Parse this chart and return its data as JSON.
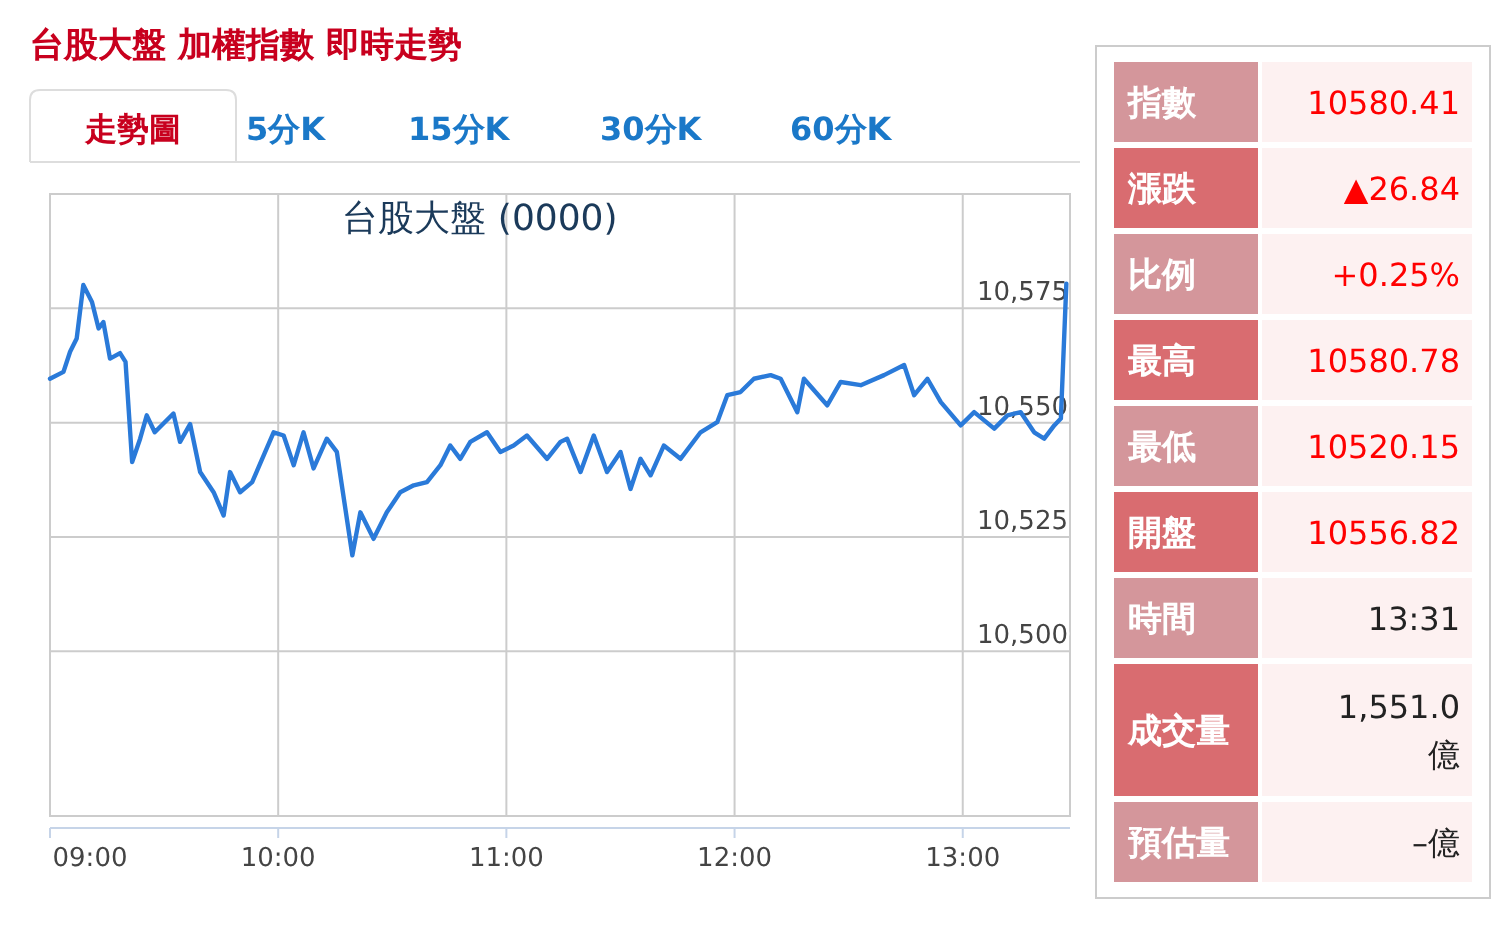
{
  "chart_data": [
    {
      "type": "line",
      "title": "台股大盤 加權指數 即時走勢",
      "subtitle": "台股大盤 (0000)",
      "annotations": [
        "走勢圖",
        "5分K",
        "15分K",
        "30分K",
        "60分K"
      ],
      "series": [
        {
          "color": "#2a7ad9",
          "x": [
            9.0,
            9.059,
            9.088,
            9.117,
            9.146,
            9.184,
            9.213,
            9.234,
            9.263,
            9.307,
            9.331,
            9.36,
            9.395,
            9.424,
            9.459,
            9.541,
            9.57,
            9.614,
            9.658,
            9.717,
            9.761,
            9.789,
            9.833,
            9.886,
            9.936,
            9.98,
            10.024,
            10.068,
            10.111,
            10.155,
            10.213,
            10.257,
            10.325,
            10.36,
            10.418,
            10.476,
            10.535,
            10.594,
            10.652,
            10.711,
            10.754,
            10.798,
            10.842,
            10.915,
            10.974,
            11.032,
            11.09,
            11.178,
            11.237,
            11.266,
            11.325,
            11.383,
            11.441,
            11.5,
            11.544,
            11.588,
            11.632,
            11.69,
            11.763,
            11.851,
            11.924,
            11.968,
            12.026,
            12.085,
            12.158,
            12.202,
            12.275,
            12.304,
            12.406,
            12.465,
            12.553,
            12.655,
            12.743,
            12.787,
            12.845,
            12.904,
            12.991,
            13.05,
            13.138,
            13.196,
            13.254,
            13.313,
            13.357,
            13.401,
            13.43,
            13.454
          ],
          "values": [
            10559.6,
            10561.1,
            10565.5,
            10568.4,
            10580.1,
            10576.4,
            10570.6,
            10572,
            10564,
            10565.2,
            10563.3,
            10541.4,
            10546.5,
            10551.6,
            10547.9,
            10552,
            10545.8,
            10549.7,
            10539.2,
            10534.8,
            10529.7,
            10539.2,
            10534.8,
            10537,
            10542.8,
            10547.9,
            10547.2,
            10540.7,
            10547.9,
            10540,
            10546.5,
            10543.6,
            10521,
            10530.4,
            10524.6,
            10530.4,
            10534.8,
            10536.3,
            10537,
            10540.7,
            10545,
            10542.1,
            10545.8,
            10547.9,
            10543.6,
            10545,
            10547.2,
            10542.1,
            10545.8,
            10546.5,
            10539.2,
            10547.2,
            10539.2,
            10543.6,
            10535.5,
            10542.1,
            10538.5,
            10545,
            10542.1,
            10547.9,
            10550.1,
            10556,
            10556.7,
            10559.6,
            10560.4,
            10559.6,
            10552.3,
            10559.6,
            10553.8,
            10558.9,
            10558.2,
            10560.4,
            10562.6,
            10556,
            10559.6,
            10554.5,
            10549.4,
            10552.3,
            10548.7,
            10551.6,
            10552.3,
            10547.9,
            10546.5,
            10549.4,
            10550.9,
            10580.4
          ]
        }
      ],
      "xlim": [
        9,
        13.47
      ],
      "xticks": [
        {
          "value": 9,
          "label": "09:00"
        },
        {
          "value": 10,
          "label": "10:00"
        },
        {
          "value": 11,
          "label": "11:00"
        },
        {
          "value": 12,
          "label": "12:00"
        },
        {
          "value": 13,
          "label": "13:00"
        }
      ],
      "ylim": [
        10464,
        10600
      ],
      "yticks": [
        {
          "value": 10500,
          "label": "10,500"
        },
        {
          "value": 10525,
          "label": "10,525"
        },
        {
          "value": 10550,
          "label": "10,550"
        },
        {
          "value": 10575,
          "label": "10,575"
        }
      ],
      "grid": true
    },
    {
      "type": "other",
      "categories": [
        "指數",
        "漲跌",
        "比例",
        "最高",
        "最低",
        "開盤",
        "時間",
        "成交量",
        "預估量"
      ],
      "value_labels": [
        "10580.41",
        "▲26.84",
        "+0.25%",
        "10580.78",
        "10520.15",
        "10556.82",
        "13:31",
        "1,551.0 億",
        "–億"
      ],
      "colors": [
        "#d4969b",
        "#d96c70",
        "#d4969b",
        "#d96c70",
        "#d4969b",
        "#d96c70",
        "#d4969b",
        "#d96c70",
        "#d4969b"
      ]
    }
  ]
}
